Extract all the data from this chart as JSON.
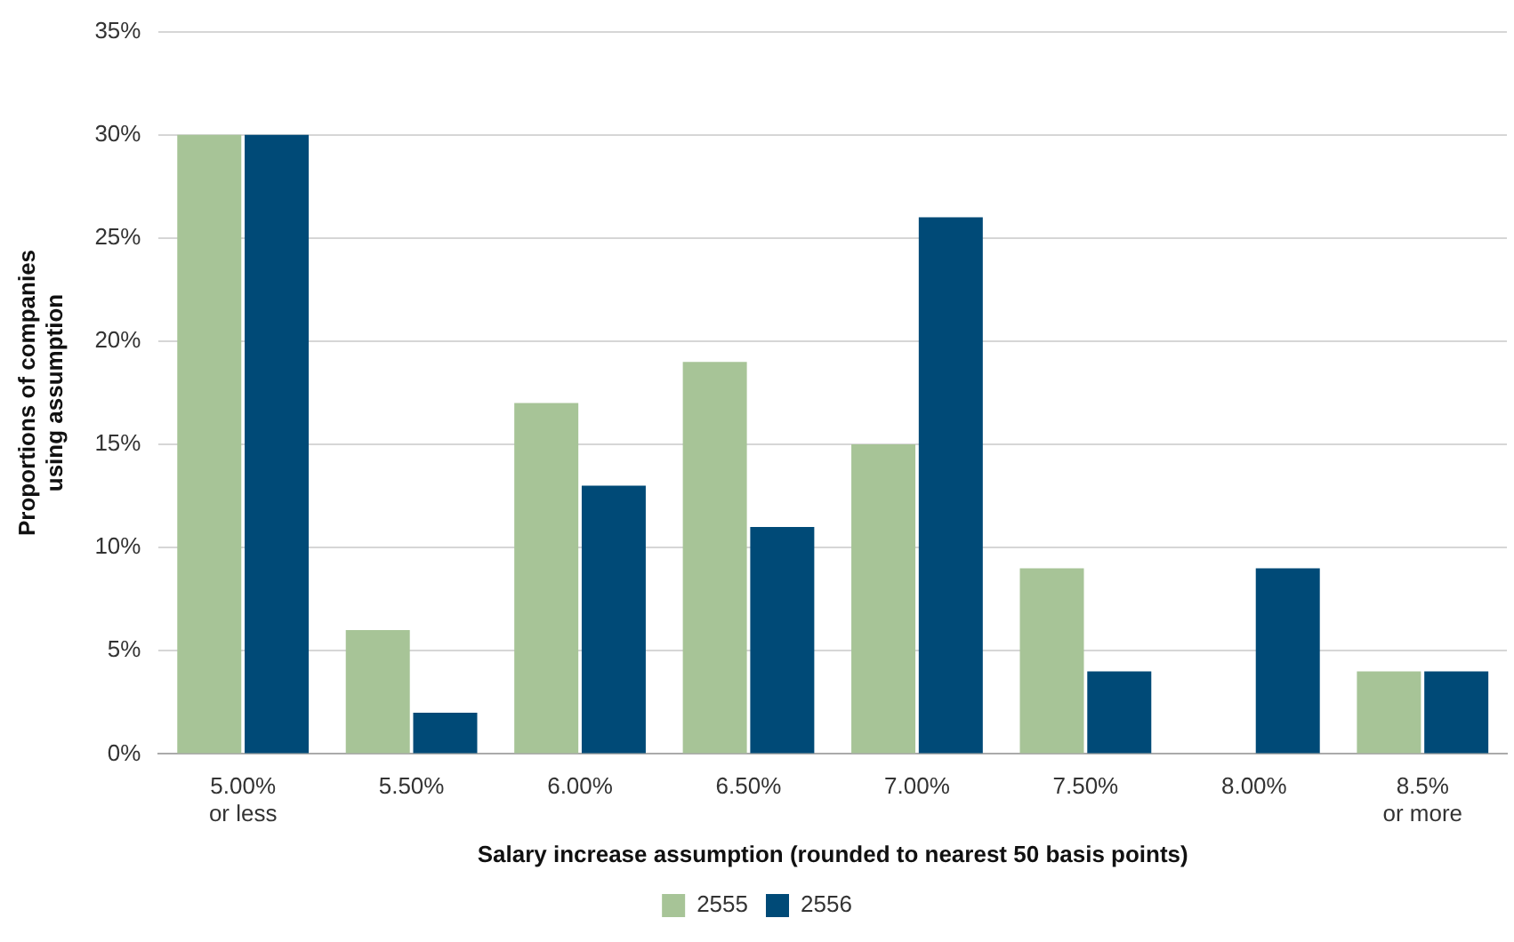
{
  "chart_data": {
    "type": "bar",
    "xlabel": "Salary increase assumption (rounded to nearest 50 basis points)",
    "ylabel": "Proportions of companies\nusing assumption",
    "categories": [
      "5.00%\nor less",
      "5.50%",
      "6.00%",
      "6.50%",
      "7.00%",
      "7.50%",
      "8.00%",
      "8.5%\nor more"
    ],
    "series": [
      {
        "name": "2555",
        "color": "#a7c497",
        "values": [
          30,
          6,
          17,
          19,
          15,
          9,
          0,
          4
        ]
      },
      {
        "name": "2556",
        "color": "#004a77",
        "values": [
          30,
          2,
          13,
          11,
          26,
          4,
          9,
          4
        ]
      }
    ],
    "ylim": [
      0,
      35
    ],
    "yticks": [
      {
        "value": 0,
        "label": "0%"
      },
      {
        "value": 5,
        "label": "5%"
      },
      {
        "value": 10,
        "label": "10%"
      },
      {
        "value": 15,
        "label": "15%"
      },
      {
        "value": 20,
        "label": "20%"
      },
      {
        "value": 25,
        "label": "25%"
      },
      {
        "value": 30,
        "label": "30%"
      },
      {
        "value": 35,
        "label": "35%"
      }
    ],
    "grid": "y",
    "legend": "bottom"
  }
}
